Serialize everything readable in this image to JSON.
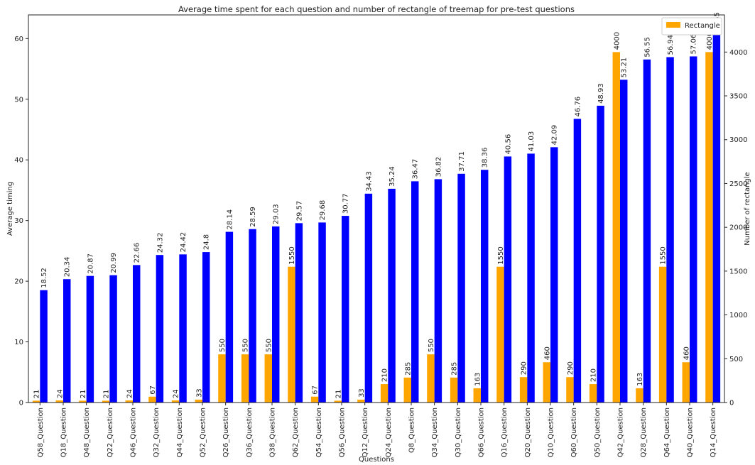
{
  "chart_data": {
    "type": "bar",
    "title": "Average time spent for each question and number of rectangle of treemap for pre-test questions",
    "x_label": "Questions",
    "y_label": "Average timing",
    "y2_label": "Number of rectangle",
    "categories": [
      "Q58_Question",
      "Q18_Question",
      "Q48_Question",
      "Q22_Question",
      "Q46_Question",
      "Q32_Question",
      "Q44_Question",
      "Q52_Question",
      "Q26_Question",
      "Q36_Question",
      "Q38_Question",
      "Q62_Question",
      "Q54_Question",
      "Q56_Question",
      "Q12_Question",
      "Q24_Question",
      "Q8_Question",
      "Q34_Question",
      "Q30_Question",
      "Q66_Question",
      "Q16_Question",
      "Q20_Question",
      "Q10_Question",
      "Q60_Question",
      "Q50_Question",
      "Q42_Question",
      "Q28_Question",
      "Q64_Question",
      "Q40_Question",
      "Q14_Question"
    ],
    "series": [
      {
        "color": "#0000ff",
        "axis": "y",
        "values": [
          18.52,
          20.34,
          20.87,
          20.99,
          22.66,
          24.32,
          24.42,
          24.8,
          28.14,
          28.59,
          29.03,
          29.57,
          29.68,
          30.77,
          34.43,
          35.24,
          36.47,
          36.82,
          37.71,
          38.36,
          40.56,
          41.03,
          42.09,
          46.76,
          48.93,
          53.21,
          56.55,
          56.94,
          57.06,
          60.65
        ]
      },
      {
        "name": "Rectangle",
        "color": "#ffa500",
        "axis": "y2",
        "values": [
          21,
          24,
          21,
          21,
          24,
          67,
          24,
          33,
          550,
          550,
          550,
          1550,
          67,
          21,
          33,
          210,
          285,
          550,
          285,
          163,
          1550,
          290,
          460,
          290,
          210,
          4000,
          163,
          1550,
          460,
          4000
        ]
      }
    ],
    "ylim": [
      0,
      63.9
    ],
    "yticks": [
      0,
      10,
      20,
      30,
      40,
      50,
      60
    ],
    "y2lim": [
      0,
      4424
    ],
    "y2ticks": [
      0,
      500,
      1000,
      1500,
      2000,
      2500,
      3000,
      3500,
      4000
    ],
    "legend": "upper right",
    "grid": false
  }
}
